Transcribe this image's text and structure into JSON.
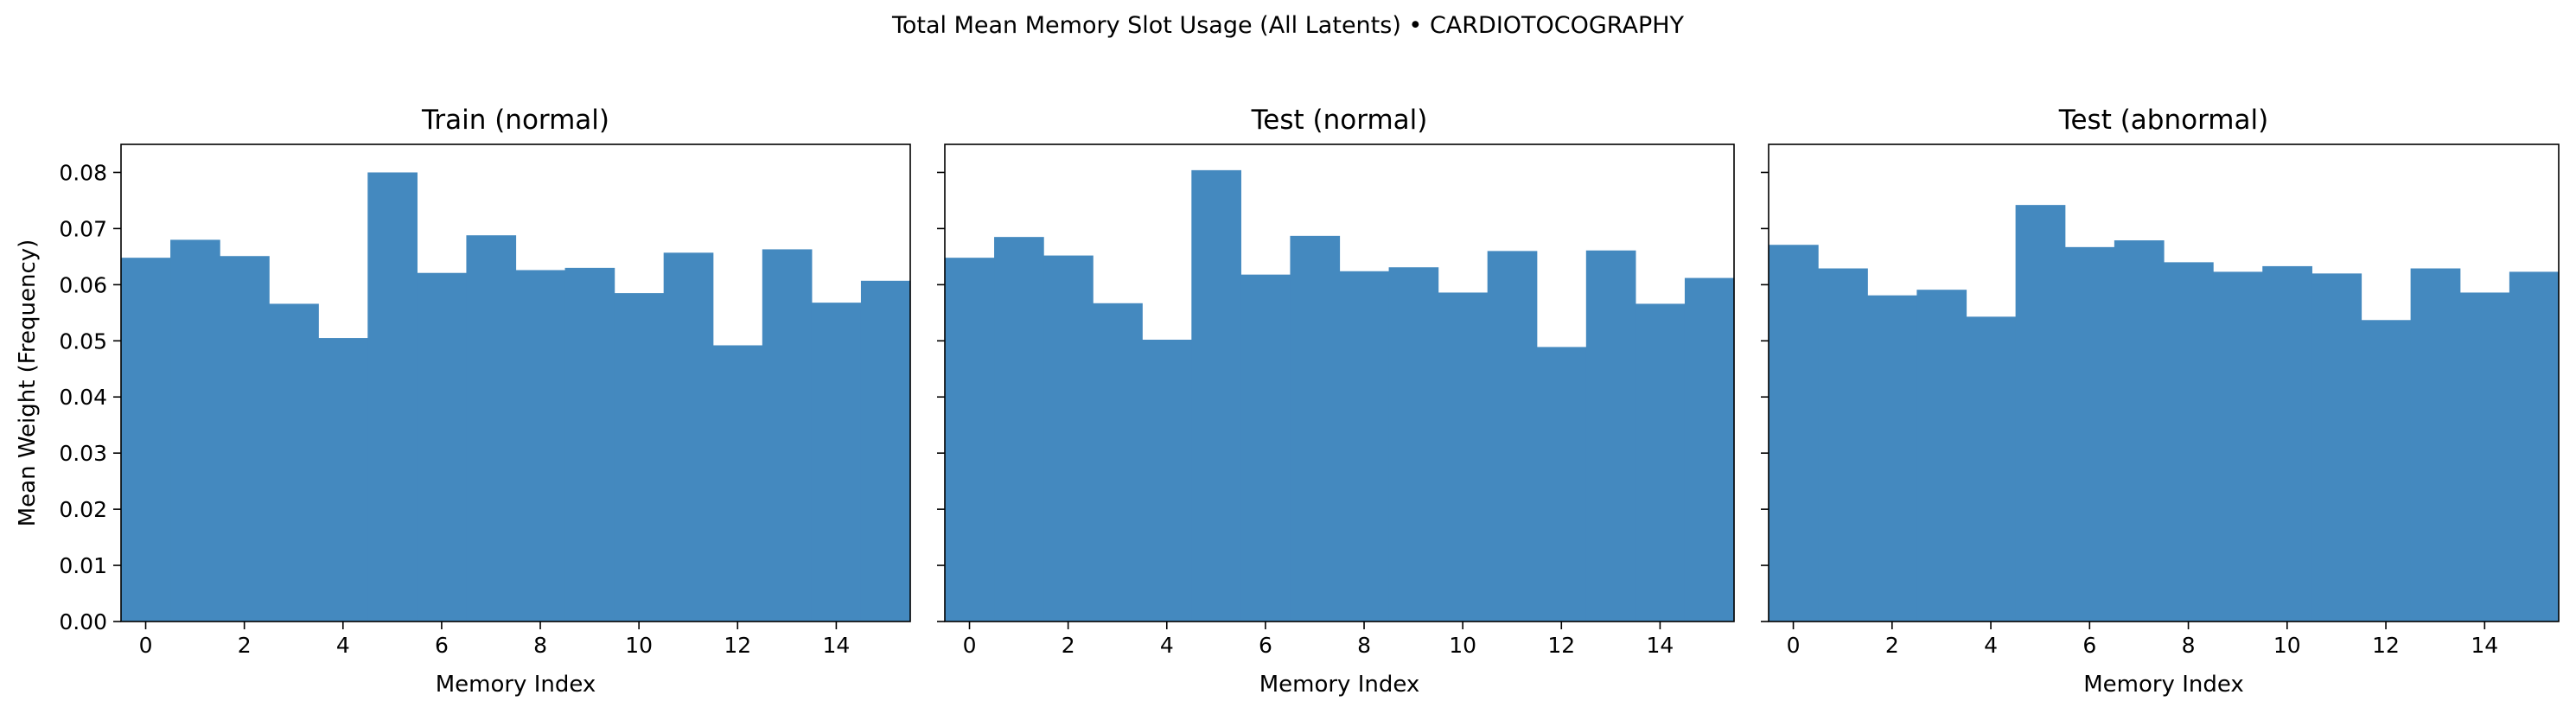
{
  "figure": {
    "title": "Total Mean Memory Slot Usage (All Latents) • CARDIOTOCOGRAPHY",
    "bar_color": "#4489bf"
  },
  "chart_data": [
    {
      "type": "bar",
      "title": "Train (normal)",
      "xlabel": "Memory Index",
      "ylabel": "Mean Weight (Frequency)",
      "x": [
        0,
        1,
        2,
        3,
        4,
        5,
        6,
        7,
        8,
        9,
        10,
        11,
        12,
        13,
        14,
        15
      ],
      "values": [
        0.0648,
        0.068,
        0.0651,
        0.0566,
        0.0505,
        0.08,
        0.0621,
        0.0688,
        0.0626,
        0.063,
        0.0585,
        0.0657,
        0.0492,
        0.0663,
        0.0568,
        0.0607
      ],
      "xlim": [
        -0.5,
        15.5
      ],
      "ylim": [
        0,
        0.085
      ],
      "xticks": [
        0,
        2,
        4,
        6,
        8,
        10,
        12,
        14
      ],
      "yticks": [
        "0.00",
        "0.01",
        "0.02",
        "0.03",
        "0.04",
        "0.05",
        "0.06",
        "0.07",
        "0.08"
      ]
    },
    {
      "type": "bar",
      "title": "Test (normal)",
      "xlabel": "Memory Index",
      "ylabel": "",
      "x": [
        0,
        1,
        2,
        3,
        4,
        5,
        6,
        7,
        8,
        9,
        10,
        11,
        12,
        13,
        14,
        15
      ],
      "values": [
        0.0648,
        0.0685,
        0.0652,
        0.0567,
        0.0502,
        0.0804,
        0.0618,
        0.0687,
        0.0624,
        0.0631,
        0.0586,
        0.066,
        0.0489,
        0.0661,
        0.0566,
        0.0612
      ],
      "xlim": [
        -0.5,
        15.5
      ],
      "ylim": [
        0,
        0.085
      ],
      "xticks": [
        0,
        2,
        4,
        6,
        8,
        10,
        12,
        14
      ],
      "yticks": []
    },
    {
      "type": "bar",
      "title": "Test (abnormal)",
      "xlabel": "Memory Index",
      "ylabel": "",
      "x": [
        0,
        1,
        2,
        3,
        4,
        5,
        6,
        7,
        8,
        9,
        10,
        11,
        12,
        13,
        14,
        15
      ],
      "values": [
        0.0671,
        0.0629,
        0.0581,
        0.0591,
        0.0543,
        0.0742,
        0.0667,
        0.0679,
        0.064,
        0.0623,
        0.0633,
        0.062,
        0.0537,
        0.0629,
        0.0586,
        0.0623
      ],
      "xlim": [
        -0.5,
        15.5
      ],
      "ylim": [
        0,
        0.085
      ],
      "xticks": [
        0,
        2,
        4,
        6,
        8,
        10,
        12,
        14
      ],
      "yticks": []
    }
  ]
}
